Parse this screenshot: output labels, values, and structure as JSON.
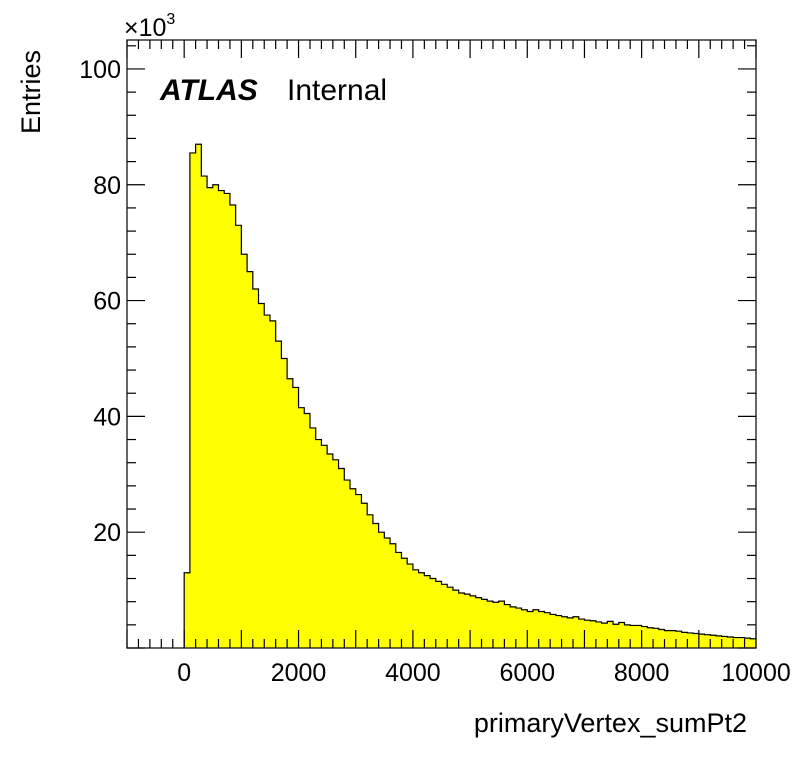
{
  "chart_data": {
    "type": "bar",
    "histogram": true,
    "xlabel": "primaryVertex_sumPt2",
    "ylabel": "Entries",
    "y_multiplier_base": "×10",
    "y_multiplier_exp": "3",
    "xlim": [
      -1000,
      10000
    ],
    "ylim": [
      0,
      105
    ],
    "x_ticks": [
      0,
      2000,
      4000,
      6000,
      8000,
      10000
    ],
    "y_ticks": [
      20,
      40,
      60,
      80,
      100
    ],
    "x_tick_labels": [
      "0",
      "2000",
      "4000",
      "6000",
      "8000",
      "10000"
    ],
    "y_tick_labels": [
      "20",
      "40",
      "60",
      "80",
      "100"
    ],
    "bin_start": 0,
    "bin_width": 100,
    "values": [
      13.0,
      85.5,
      87.0,
      81.5,
      79.5,
      80.0,
      79.0,
      78.5,
      76.5,
      73.0,
      68.0,
      65.0,
      62.0,
      59.5,
      57.5,
      56.5,
      53.0,
      50.0,
      46.5,
      45.0,
      41.5,
      40.5,
      38.0,
      36.0,
      35.0,
      33.5,
      32.5,
      31.0,
      29.0,
      27.5,
      26.5,
      25.0,
      23.0,
      21.5,
      20.0,
      19.0,
      18.0,
      16.5,
      15.5,
      14.5,
      13.5,
      13.0,
      12.5,
      12.0,
      11.5,
      11.0,
      10.5,
      10.0,
      9.5,
      9.3,
      9.0,
      8.7,
      8.4,
      8.1,
      7.9,
      8.1,
      7.5,
      7.1,
      6.9,
      6.6,
      6.3,
      6.6,
      6.3,
      6.1,
      5.8,
      5.6,
      5.4,
      5.2,
      5.4,
      5.0,
      4.8,
      4.7,
      4.5,
      4.3,
      4.6,
      4.1,
      4.4,
      4.0,
      3.9,
      3.9,
      3.7,
      3.5,
      3.4,
      3.2,
      3.0,
      3.0,
      2.9,
      2.7,
      2.6,
      2.5,
      2.4,
      2.3,
      2.2,
      2.1,
      2.0,
      1.9,
      1.8,
      1.8,
      1.7,
      1.6
    ],
    "fill_color": "#ffff00",
    "line_color": "#000000",
    "grid": false,
    "annotations": {
      "experiment": "ATLAS",
      "status": "Internal"
    }
  }
}
